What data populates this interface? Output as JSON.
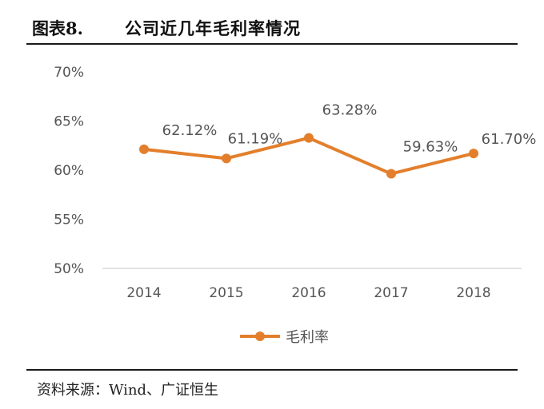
{
  "figure": {
    "number": "图表8.",
    "title": "公司近几年毛利率情况",
    "source": "资料来源：Wind、广证恒生"
  },
  "colors": {
    "series": "#e37f2c",
    "axis": "#d8d8d8",
    "text": "#555555"
  },
  "chart_data": {
    "type": "line",
    "title": "公司近几年毛利率情况",
    "categories": [
      "2014",
      "2015",
      "2016",
      "2017",
      "2018"
    ],
    "series": [
      {
        "name": "毛利率",
        "values": [
          62.12,
          61.19,
          63.28,
          59.63,
          61.7
        ],
        "labels": [
          "62.12%",
          "61.19%",
          "63.28%",
          "59.63%",
          "61.70%"
        ]
      }
    ],
    "yticks": [
      "50%",
      "55%",
      "60%",
      "65%",
      "70%"
    ],
    "ylim": [
      50,
      70
    ],
    "grid": false,
    "legend": "bottom",
    "xlabel": "",
    "ylabel": ""
  }
}
